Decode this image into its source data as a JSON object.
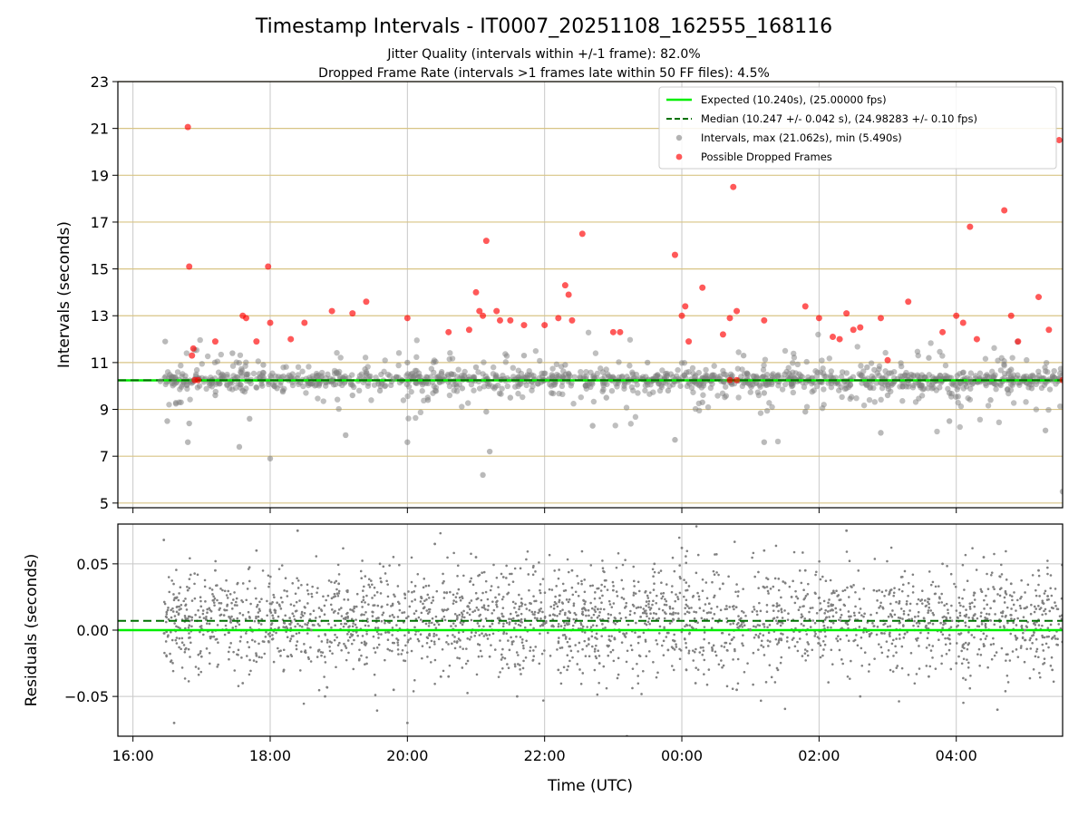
{
  "chart_data": {
    "type": "scatter",
    "title": "Timestamp Intervals - IT0007_20251108_162555_168116",
    "subtitle_lines": [
      "Jitter Quality (intervals within +/-1 frame): 82.0%",
      "Dropped Frame Rate (intervals >1 frames late within 50 FF files): 4.5%"
    ],
    "xlabel": "Time (UTC)",
    "x_tick_labels": [
      "16:00",
      "18:00",
      "20:00",
      "22:00",
      "00:00",
      "02:00",
      "04:00"
    ],
    "x_range_hours": [
      15.78,
      29.55
    ],
    "grid": true,
    "legend_position": "top-right",
    "colors": {
      "expected": "#00ee00",
      "median": "#007000",
      "intervals": "#808080",
      "dropped": "#ff0000",
      "hline": "#d8c485"
    },
    "panels": [
      {
        "name": "intervals",
        "ylabel": "Intervals (seconds)",
        "ylim": [
          4.8,
          23
        ],
        "yticks": [
          5,
          7,
          9,
          11,
          13,
          15,
          17,
          19,
          21,
          23
        ],
        "expected_line": 10.24,
        "median_line": 10.247,
        "legend": [
          "Expected (10.240s), (25.00000 fps)",
          "Median (10.247 +/- 0.042 s), (24.98283 +/- 0.10 fps)",
          "Intervals, max (21.062s), min (5.490s)",
          "Possible Dropped Frames"
        ],
        "series": [
          {
            "name": "Intervals",
            "x_hours": [
              16.4,
              16.47,
              16.6,
              16.7,
              16.82,
              16.86,
              16.9,
              17.2,
              17.3,
              17.45,
              17.6,
              17.7,
              17.9,
              18.1,
              18.3,
              18.6,
              18.9,
              19.2,
              19.4,
              19.6,
              19.8,
              20.0,
              20.3,
              20.5,
              20.8,
              21.0,
              21.15,
              21.3,
              21.5,
              21.7,
              21.9,
              22.1,
              22.3,
              22.6,
              22.9,
              23.2,
              23.5,
              23.8,
              24.1,
              24.3,
              24.6,
              24.9,
              25.2,
              25.5,
              25.8,
              26.1,
              26.4,
              26.7,
              27.0,
              27.3,
              27.6,
              27.9,
              28.2,
              28.5,
              28.8,
              29.1,
              29.4,
              29.55,
              16.5,
              16.8,
              17.55,
              18.0,
              19.1,
              20.0,
              21.1,
              21.2,
              22.7,
              23.9,
              25.2,
              26.9,
              27.9,
              29.3
            ],
            "y": [
              10.2,
              11.9,
              10.2,
              9.3,
              8.4,
              10.2,
              10.3,
              9.6,
              10.5,
              11.4,
              9.8,
              8.6,
              10.9,
              9.9,
              10.4,
              10.1,
              10.2,
              9.6,
              10.6,
              9.8,
              10.3,
              11.0,
              9.4,
              10.6,
              9.9,
              10.8,
              8.9,
              10.4,
              9.5,
              11.3,
              10.1,
              9.7,
              10.9,
              10.0,
              9.5,
              10.4,
              11.0,
              9.8,
              10.6,
              9.3,
              10.2,
              11.3,
              9.7,
              10.5,
              8.9,
              10.4,
              9.9,
              10.8,
              9.6,
              10.1,
              11.2,
              9.7,
              10.3,
              9.4,
              10.7,
              9.9,
              10.3,
              5.49,
              8.5,
              7.6,
              7.4,
              6.9,
              7.9,
              7.6,
              6.2,
              7.2,
              8.3,
              7.7,
              7.6,
              8.0,
              8.5,
              8.1
            ]
          },
          {
            "name": "Possible Dropped Frames",
            "x_hours": [
              16.8,
              16.82,
              16.86,
              16.88,
              17.2,
              17.6,
              17.65,
              17.8,
              17.97,
              18.0,
              18.3,
              18.5,
              18.9,
              19.2,
              19.4,
              20.0,
              20.6,
              20.9,
              21.0,
              21.05,
              21.1,
              21.15,
              21.3,
              21.35,
              21.5,
              21.7,
              22.0,
              22.2,
              22.3,
              22.35,
              22.4,
              22.55,
              23.0,
              23.1,
              23.9,
              24.0,
              24.05,
              24.1,
              24.3,
              24.6,
              24.7,
              24.75,
              24.8,
              25.2,
              25.8,
              26.0,
              26.2,
              26.3,
              26.4,
              26.5,
              26.6,
              26.9,
              27.0,
              27.3,
              27.8,
              28.0,
              28.1,
              28.2,
              28.3,
              28.7,
              28.8,
              28.9,
              29.2,
              29.35,
              29.5,
              16.9,
              16.95,
              24.7,
              24.8,
              29.55
            ],
            "y": [
              21.06,
              15.1,
              11.3,
              11.6,
              11.9,
              13.0,
              12.9,
              11.9,
              15.1,
              12.7,
              12.0,
              12.7,
              13.2,
              13.1,
              13.6,
              12.9,
              12.3,
              12.4,
              14.0,
              13.2,
              13.0,
              16.2,
              13.2,
              12.8,
              12.8,
              12.6,
              12.6,
              12.9,
              14.3,
              13.9,
              12.8,
              16.5,
              12.3,
              12.3,
              15.6,
              13.0,
              13.4,
              11.9,
              14.2,
              12.2,
              12.9,
              18.5,
              13.2,
              12.8,
              13.4,
              12.9,
              12.1,
              12.0,
              13.1,
              12.4,
              12.5,
              12.9,
              11.1,
              13.6,
              12.3,
              13.0,
              12.7,
              16.8,
              12.0,
              17.5,
              13.0,
              11.9,
              13.8,
              12.4,
              20.5,
              10.25,
              10.25,
              10.25,
              10.25,
              10.25
            ]
          }
        ]
      },
      {
        "name": "residuals",
        "ylabel": "Residuals (seconds)",
        "ylim": [
          -0.08,
          0.08
        ],
        "ytick_values": [
          -0.05,
          0.0,
          0.05
        ],
        "ytick_labels": [
          "−0.05",
          "0.00",
          "0.05"
        ],
        "expected_line": 0.0,
        "median_line": 0.007,
        "series": [
          {
            "name": "Residuals",
            "x_hours": [
              16.45,
              16.6,
              16.8,
              17.0,
              17.2,
              17.4,
              17.6,
              17.8,
              18.0,
              18.2,
              18.4,
              18.6,
              18.8,
              19.0,
              19.2,
              19.4,
              19.6,
              19.8,
              20.0,
              20.2,
              20.4,
              20.6,
              20.8,
              21.0,
              21.2,
              21.4,
              21.6,
              21.8,
              22.0,
              22.2,
              22.4,
              22.6,
              22.8,
              23.0,
              23.2,
              23.4,
              23.6,
              23.8,
              24.0,
              24.2,
              24.4,
              24.6,
              24.8,
              25.0,
              25.2,
              25.4,
              25.6,
              25.8,
              26.0,
              26.2,
              26.4,
              26.6,
              26.8,
              27.0,
              27.2,
              27.4,
              27.6,
              27.8,
              28.0,
              28.2,
              28.4,
              28.6,
              28.8,
              29.0,
              29.2,
              29.4
            ],
            "y": [
              0.068,
              -0.07,
              0.03,
              -0.02,
              0.045,
              0.01,
              -0.04,
              0.06,
              0.02,
              -0.03,
              0.075,
              0.0,
              -0.05,
              0.035,
              0.015,
              -0.01,
              0.05,
              -0.045,
              -0.07,
              0.025,
              0.065,
              -0.035,
              0.01,
              0.055,
              -0.02,
              0.04,
              -0.05,
              0.02,
              0.005,
              -0.03,
              0.045,
              0.015,
              -0.025,
              0.03,
              -0.08,
              0.01,
              0.05,
              -0.015,
              0.062,
              -0.04,
              0.02,
              0.035,
              -0.045,
              0.0,
              0.06,
              -0.03,
              0.025,
              0.045,
              -0.01,
              0.015,
              0.075,
              -0.05,
              0.03,
              -0.02,
              0.04,
              0.01,
              -0.035,
              0.05,
              -0.025,
              0.02,
              0.055,
              -0.06,
              0.035,
              0.0,
              0.045,
              -0.03
            ]
          }
        ]
      }
    ]
  }
}
